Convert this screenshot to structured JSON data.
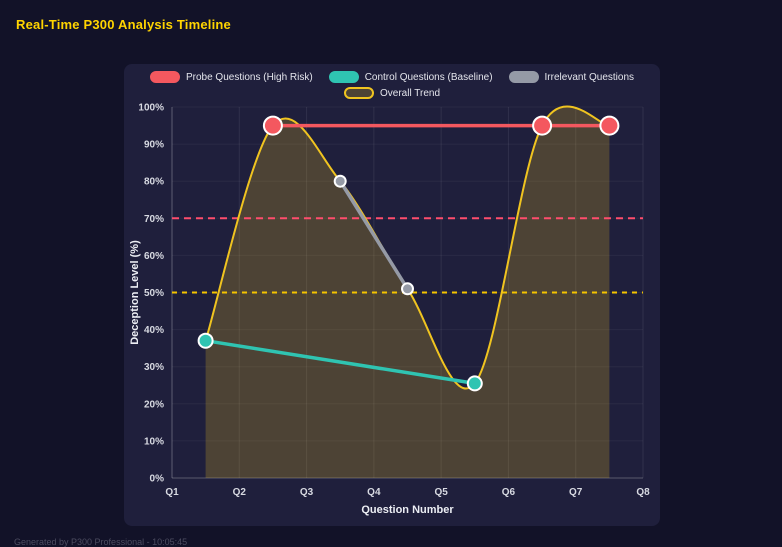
{
  "page": {
    "title": "Real-Time P300 Analysis Timeline",
    "footer": "Generated by P300 Professional - 10:05:45"
  },
  "chart_data": {
    "type": "line",
    "title": "Real-Time P300 Analysis Timeline",
    "xlabel": "Question Number",
    "ylabel": "Deception Level (%)",
    "xlim": [
      1,
      8
    ],
    "ylim": [
      0,
      100
    ],
    "x_ticks": [
      "Q1",
      "Q2",
      "Q3",
      "Q4",
      "Q5",
      "Q6",
      "Q7",
      "Q8"
    ],
    "y_ticks": [
      "0%",
      "10%",
      "20%",
      "30%",
      "40%",
      "50%",
      "60%",
      "70%",
      "80%",
      "90%",
      "100%"
    ],
    "grid": true,
    "legend_position": "top",
    "series": [
      {
        "name": "Probe Questions (High Risk)",
        "color": "#f4585f",
        "point_radius": 9,
        "line_width": 3.5,
        "x": [
          2.5,
          6.5,
          7.5
        ],
        "y": [
          95,
          95,
          95
        ]
      },
      {
        "name": "Control Questions (Baseline)",
        "color": "#2fc4b2",
        "point_radius": 7,
        "line_width": 3.5,
        "x": [
          1.5,
          5.5
        ],
        "y": [
          37,
          25.5
        ]
      },
      {
        "name": "Irrelevant Questions",
        "color": "#959aa6",
        "point_radius": 5.5,
        "line_width": 3.5,
        "x": [
          3.5,
          4.5
        ],
        "y": [
          80,
          51
        ]
      },
      {
        "name": "Overall Trend",
        "color": "#f0c420",
        "fill": "rgba(240,196,32,0.22)",
        "smooth": true,
        "point_radius": 0,
        "line_width": 2,
        "x": [
          1.5,
          2.5,
          3.5,
          4.5,
          5.5,
          6.5,
          7.5
        ],
        "y": [
          37,
          95,
          80,
          51,
          25.5,
          95,
          95
        ]
      }
    ],
    "thresholds": [
      {
        "value": 70,
        "color": "#ff4d6d",
        "dash": "7 5"
      },
      {
        "value": 50,
        "color": "#f5c400",
        "dash": "5 5"
      }
    ]
  }
}
